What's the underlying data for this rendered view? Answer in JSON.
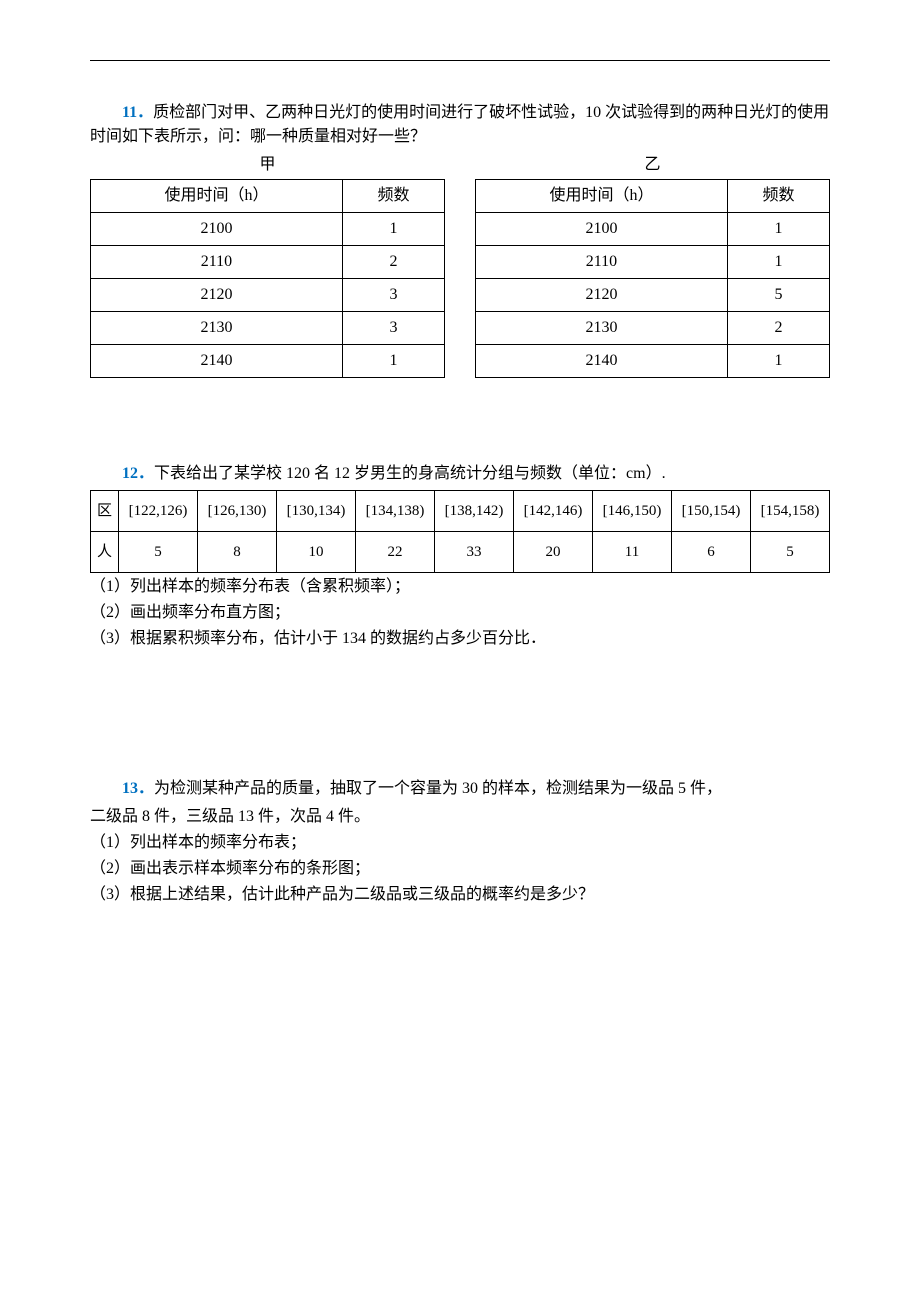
{
  "colors": {
    "text": "#000000",
    "accent": "#0070c0",
    "background": "#ffffff",
    "border": "#000000"
  },
  "typography": {
    "font_family": "SimSun",
    "font_size_pt": 12,
    "line_height": 1.5
  },
  "q11": {
    "number": "11．",
    "text": "质检部门对甲、乙两种日光灯的使用时间进行了破坏性试验，10 次试验得到的两种日光灯的使用时间如下表所示，问：哪一种质量相对好一些？",
    "table_a": {
      "caption": "甲",
      "columns": [
        "使用时间（h）",
        "频数"
      ],
      "rows": [
        [
          "2100",
          "1"
        ],
        [
          "2110",
          "2"
        ],
        [
          "2120",
          "3"
        ],
        [
          "2130",
          "3"
        ],
        [
          "2140",
          "1"
        ]
      ]
    },
    "table_b": {
      "caption": "乙",
      "columns": [
        "使用时间（h）",
        "频数"
      ],
      "rows": [
        [
          "2100",
          "1"
        ],
        [
          "2110",
          "1"
        ],
        [
          "2120",
          "5"
        ],
        [
          "2130",
          "2"
        ],
        [
          "2140",
          "1"
        ]
      ]
    }
  },
  "q12": {
    "number": "12．",
    "text": "下表给出了某学校 120 名 12 岁男生的身高统计分组与频数（单位：cm）.",
    "table": {
      "row_labels": [
        "区",
        "人"
      ],
      "columns": [
        "[122,126)",
        "[126,130)",
        "[130,134)",
        "[134,138)",
        "[138,142)",
        "[142,146)",
        "[146,150)",
        "[150,154)",
        "[154,158)"
      ],
      "values": [
        "5",
        "8",
        "10",
        "22",
        "33",
        "20",
        "11",
        "6",
        "5"
      ]
    },
    "subitems": [
      "（1）列出样本的频率分布表（含累积频率）；",
      "（2）画出频率分布直方图；",
      "（3）根据累积频率分布，估计小于 134 的数据约占多少百分比．"
    ]
  },
  "q13": {
    "number": "13．",
    "line1": "为检测某种产品的质量，抽取了一个容量为 30 的样本，检测结果为一级品 5 件，",
    "line2": "二级品 8 件，三级品 13 件，次品 4 件。",
    "subitems": [
      "（1）列出样本的频率分布表；",
      "（2）画出表示样本频率分布的条形图；",
      "（3）根据上述结果，估计此种产品为二级品或三级品的概率约是多少？"
    ]
  }
}
